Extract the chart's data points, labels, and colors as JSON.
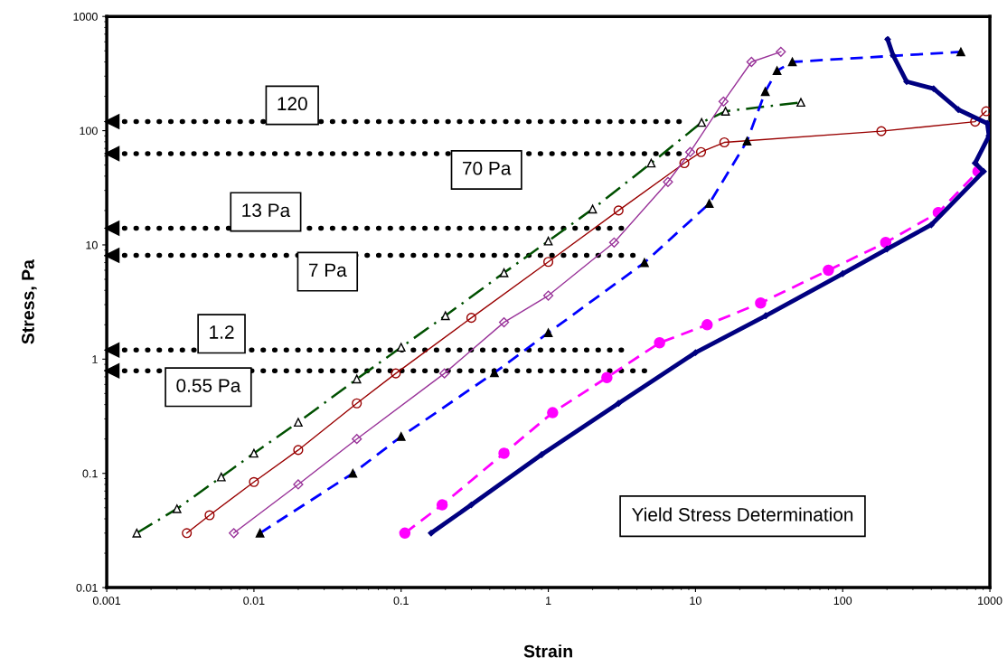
{
  "chart_data": {
    "type": "line",
    "xlabel": "Strain",
    "ylabel": "Stress, Pa",
    "log": "xy",
    "xlim": [
      0.001,
      1000
    ],
    "ylim": [
      0.01,
      1000
    ],
    "xticks": [
      {
        "value": 0.001,
        "label": "0.001"
      },
      {
        "value": 0.01,
        "label": "0.01"
      },
      {
        "value": 0.1,
        "label": "0.1"
      },
      1,
      10,
      100,
      1000
    ],
    "yticks": [
      {
        "value": 0.01,
        "label": "0.01"
      },
      {
        "value": 0.1,
        "label": "0.1"
      },
      1,
      10,
      100,
      1000
    ],
    "grid": false,
    "ref_lines": [
      {
        "axis": "y",
        "value": 120,
        "label": "120"
      },
      {
        "axis": "y",
        "value": 63,
        "label": "70 Pa"
      },
      {
        "axis": "y",
        "value": 14,
        "label": "13 Pa"
      },
      {
        "axis": "y",
        "value": 8.1,
        "label": "7 Pa"
      },
      {
        "axis": "y",
        "value": 1.2,
        "label": "1.2"
      },
      {
        "axis": "y",
        "value": 0.79,
        "label": "0.55 Pa"
      }
    ],
    "series": [
      {
        "color": "#005000",
        "marker": "triangle",
        "line_style": "dashdot",
        "x": [
          0.0016,
          0.003,
          0.006,
          0.01,
          0.02,
          0.05,
          0.1,
          0.2,
          0.5,
          1,
          2,
          5,
          11,
          16,
          52
        ],
        "values": [
          0.03,
          0.049,
          0.093,
          0.15,
          0.28,
          0.67,
          1.27,
          2.4,
          5.7,
          10.8,
          20.6,
          52,
          118,
          148,
          177
        ]
      },
      {
        "color": "#990000",
        "marker": "circle",
        "line_style": "solid",
        "x": [
          0.0035,
          0.005,
          0.01,
          0.02,
          0.05,
          0.092,
          0.3,
          1,
          3,
          8.4,
          10.9,
          15.7,
          183,
          794,
          944
        ],
        "values": [
          0.03,
          0.043,
          0.084,
          0.16,
          0.41,
          0.75,
          2.3,
          7.1,
          20,
          52,
          65,
          79,
          99,
          120,
          148
        ]
      },
      {
        "color": "#993399",
        "marker": "diamond",
        "line_style": "solid",
        "x": [
          0.0073,
          0.02,
          0.05,
          0.197,
          0.5,
          1,
          2.8,
          6.5,
          9.2,
          15.5,
          24,
          38
        ],
        "values": [
          0.03,
          0.08,
          0.2,
          0.75,
          2.1,
          3.6,
          10.5,
          35.6,
          65,
          180,
          400,
          490
        ]
      },
      {
        "color": "#0000ff",
        "marker": "triangle",
        "line_style": "dashed",
        "x": [
          0.011,
          0.047,
          0.1,
          0.43,
          1,
          4.5,
          12.4,
          22.4,
          29.8,
          35.8,
          45.5,
          635
        ],
        "values": [
          0.03,
          0.1,
          0.21,
          0.76,
          1.7,
          7.0,
          23,
          81,
          220,
          335,
          400,
          490
        ]
      },
      {
        "color": "#ff00ff",
        "marker": "circle",
        "line_style": "dashed",
        "x": [
          0.106,
          0.19,
          0.5,
          1.07,
          2.5,
          5.7,
          12,
          27.7,
          80,
          196,
          446,
          830
        ],
        "values": [
          0.03,
          0.053,
          0.15,
          0.34,
          0.69,
          1.39,
          2.0,
          3.1,
          6.0,
          10.5,
          19.2,
          44
        ]
      },
      {
        "color": "#000080",
        "marker": "diamond",
        "line_style": "solid",
        "x": [
          0.16,
          0.3,
          0.9,
          3,
          10,
          30,
          100,
          200,
          400,
          906,
          794,
          986,
          960,
          610,
          415,
          272,
          220,
          202
        ],
        "values": [
          0.03,
          0.053,
          0.146,
          0.41,
          1.14,
          2.4,
          5.6,
          9.2,
          15,
          44,
          52,
          90,
          116,
          153,
          233,
          269,
          457,
          630
        ]
      }
    ],
    "annotations": [
      "Yield Stress Determination"
    ]
  }
}
